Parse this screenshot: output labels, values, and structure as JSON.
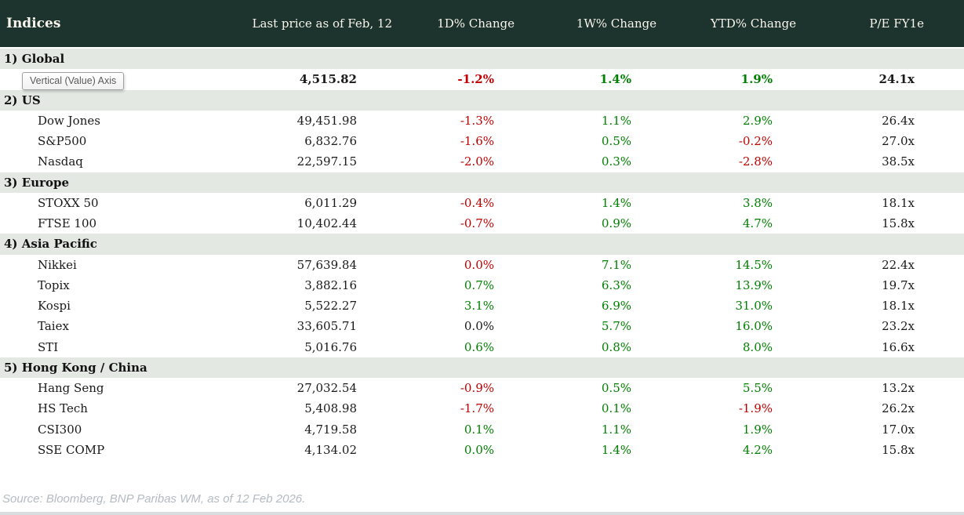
{
  "header": {
    "title": "Indices",
    "columns": {
      "price": "Last price as of Feb, 12",
      "d1": "1D% Change",
      "w1": "1W% Change",
      "ytd": "YTD% Change",
      "pe": "P/E FY1e"
    }
  },
  "tooltip": {
    "text": "Vertical (Value) Axis"
  },
  "colors": {
    "header_bg": "#1d332e",
    "band_bg": "#e3e8e3",
    "negative": "#c00000",
    "positive": "#008000"
  },
  "sections": [
    {
      "label": "1) Global",
      "rows": [
        {
          "name": "",
          "price": "4,515.82",
          "changes": [
            {
              "v": "-1.2%",
              "c": "neg"
            },
            {
              "v": "1.4%",
              "c": "pos"
            },
            {
              "v": "1.9%",
              "c": "pos"
            }
          ],
          "pe": "24.1x",
          "bold": true
        }
      ]
    },
    {
      "label": "2) US",
      "rows": [
        {
          "name": "Dow Jones",
          "price": "49,451.98",
          "changes": [
            {
              "v": "-1.3%",
              "c": "neg"
            },
            {
              "v": "1.1%",
              "c": "pos"
            },
            {
              "v": "2.9%",
              "c": "pos"
            }
          ],
          "pe": "26.4x",
          "bold": false
        },
        {
          "name": "S&P500",
          "price": "6,832.76",
          "changes": [
            {
              "v": "-1.6%",
              "c": "neg"
            },
            {
              "v": "0.5%",
              "c": "pos"
            },
            {
              "v": "-0.2%",
              "c": "neg"
            }
          ],
          "pe": "27.0x",
          "bold": false
        },
        {
          "name": "Nasdaq",
          "price": "22,597.15",
          "changes": [
            {
              "v": "-2.0%",
              "c": "neg"
            },
            {
              "v": "0.3%",
              "c": "pos"
            },
            {
              "v": "-2.8%",
              "c": "neg"
            }
          ],
          "pe": "38.5x",
          "bold": false
        }
      ]
    },
    {
      "label": "3) Europe",
      "rows": [
        {
          "name": "STOXX 50",
          "price": "6,011.29",
          "changes": [
            {
              "v": "-0.4%",
              "c": "neg"
            },
            {
              "v": "1.4%",
              "c": "pos"
            },
            {
              "v": "3.8%",
              "c": "pos"
            }
          ],
          "pe": "18.1x",
          "bold": false
        },
        {
          "name": "FTSE 100",
          "price": "10,402.44",
          "changes": [
            {
              "v": "-0.7%",
              "c": "neg"
            },
            {
              "v": "0.9%",
              "c": "pos"
            },
            {
              "v": "4.7%",
              "c": "pos"
            }
          ],
          "pe": "15.8x",
          "bold": false
        }
      ]
    },
    {
      "label": "4) Asia Pacific",
      "rows": [
        {
          "name": "Nikkei",
          "price": "57,639.84",
          "changes": [
            {
              "v": "0.0%",
              "c": "neg"
            },
            {
              "v": "7.1%",
              "c": "pos"
            },
            {
              "v": "14.5%",
              "c": "pos"
            }
          ],
          "pe": "22.4x",
          "bold": false
        },
        {
          "name": "Topix",
          "price": "3,882.16",
          "changes": [
            {
              "v": "0.7%",
              "c": "pos"
            },
            {
              "v": "6.3%",
              "c": "pos"
            },
            {
              "v": "13.9%",
              "c": "pos"
            }
          ],
          "pe": "19.7x",
          "bold": false
        },
        {
          "name": "Kospi",
          "price": "5,522.27",
          "changes": [
            {
              "v": "3.1%",
              "c": "pos"
            },
            {
              "v": "6.9%",
              "c": "pos"
            },
            {
              "v": "31.0%",
              "c": "pos"
            }
          ],
          "pe": "18.1x",
          "bold": false
        },
        {
          "name": "Taiex",
          "price": "33,605.71",
          "changes": [
            {
              "v": "0.0%",
              "c": "flat"
            },
            {
              "v": "5.7%",
              "c": "pos"
            },
            {
              "v": "16.0%",
              "c": "pos"
            }
          ],
          "pe": "23.2x",
          "bold": false
        },
        {
          "name": "STI",
          "price": "5,016.76",
          "changes": [
            {
              "v": "0.6%",
              "c": "pos"
            },
            {
              "v": "0.8%",
              "c": "pos"
            },
            {
              "v": "8.0%",
              "c": "pos"
            }
          ],
          "pe": "16.6x",
          "bold": false
        }
      ]
    },
    {
      "label": "5) Hong Kong / China",
      "rows": [
        {
          "name": "Hang Seng",
          "price": "27,032.54",
          "changes": [
            {
              "v": "-0.9%",
              "c": "neg"
            },
            {
              "v": "0.5%",
              "c": "pos"
            },
            {
              "v": "5.5%",
              "c": "pos"
            }
          ],
          "pe": "13.2x",
          "bold": false
        },
        {
          "name": "HS Tech",
          "price": "5,408.98",
          "changes": [
            {
              "v": "-1.7%",
              "c": "neg"
            },
            {
              "v": "0.1%",
              "c": "pos"
            },
            {
              "v": "-1.9%",
              "c": "neg"
            }
          ],
          "pe": "26.2x",
          "bold": false
        },
        {
          "name": "CSI300",
          "price": "4,719.58",
          "changes": [
            {
              "v": "0.1%",
              "c": "pos"
            },
            {
              "v": "1.1%",
              "c": "pos"
            },
            {
              "v": "1.9%",
              "c": "pos"
            }
          ],
          "pe": "17.0x",
          "bold": false
        },
        {
          "name": "SSE COMP",
          "price": "4,134.02",
          "changes": [
            {
              "v": "0.0%",
              "c": "pos"
            },
            {
              "v": "1.4%",
              "c": "pos"
            },
            {
              "v": "4.2%",
              "c": "pos"
            }
          ],
          "pe": "15.8x",
          "bold": false
        }
      ]
    }
  ],
  "footer": {
    "source": "Source: Bloomberg, BNP Paribas WM, as of 12 Feb 2026."
  }
}
